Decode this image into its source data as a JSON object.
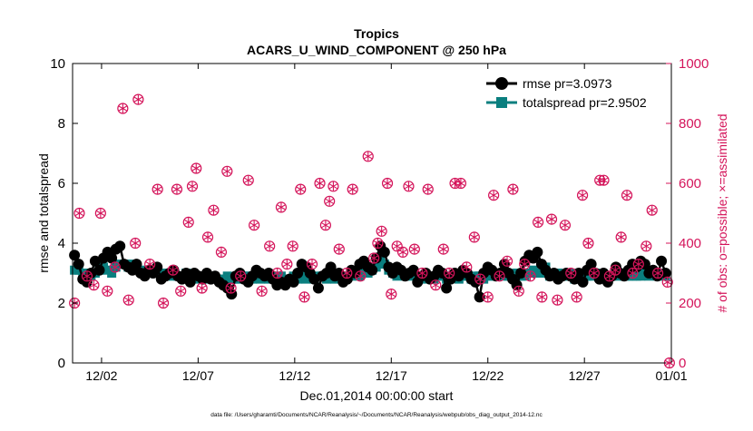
{
  "chart_data": {
    "type": "scatter",
    "title_line1": "Tropics",
    "title_line2": "ACARS_U_WIND_COMPONENT @ 250 hPa",
    "xlabel": "Dec.01,2014 00:00:00 start",
    "ylabel_left": "rmse and totalspread",
    "ylabel_right": "# of obs: o=possible; ×=assimilated",
    "footer": "data file: /Users/gharamti/Documents/NCAR/Reanalysis/~/Documents/NCAR/Reanalysis/webpub/obs_diag_output_2014-12.nc",
    "xlim": [
      0.5,
      31.5
    ],
    "ylim_left": [
      0,
      10
    ],
    "ylim_right": [
      0,
      1000
    ],
    "xticks": [
      {
        "value": 2,
        "label": "12/02"
      },
      {
        "value": 7,
        "label": "12/07"
      },
      {
        "value": 12,
        "label": "12/12"
      },
      {
        "value": 17,
        "label": "12/17"
      },
      {
        "value": 22,
        "label": "12/22"
      },
      {
        "value": 27,
        "label": "12/27"
      },
      {
        "value": 32,
        "label": "01/01"
      }
    ],
    "yticks_left": [
      "0",
      "2",
      "4",
      "6",
      "8",
      "10"
    ],
    "yticks_right": [
      "0",
      "200",
      "400",
      "600",
      "800",
      "1000"
    ],
    "legend": [
      {
        "name": "rmse pr=3.0973",
        "color": "#000000",
        "marker": "circle"
      },
      {
        "name": "totalspread pr=2.9502",
        "color": "#0a7f7f",
        "marker": "square"
      }
    ],
    "colors": {
      "rmse": "#000000",
      "spread": "#0a7f7f",
      "obs": "#d4145a",
      "axis_right": "#d4145a"
    },
    "series": [
      {
        "name": "rmse",
        "values": [
          3.6,
          3.3,
          2.8,
          2.7,
          3.0,
          3.4,
          3.1,
          3.5,
          3.7,
          3.5,
          3.8,
          3.9,
          3.3,
          3.2,
          3.1,
          3.3,
          3.0,
          2.9,
          3.1,
          3.0,
          3.2,
          2.8,
          2.9,
          3.0,
          3.1,
          2.9,
          2.8,
          3.0,
          2.7,
          3.0,
          2.9,
          2.8,
          3.0,
          2.8,
          2.9,
          2.7,
          2.6,
          2.5,
          2.3,
          2.9,
          3.0,
          2.8,
          2.7,
          2.9,
          3.1,
          3.0,
          2.9,
          3.0,
          2.8,
          2.6,
          2.7,
          2.6,
          2.8,
          2.7,
          3.0,
          3.3,
          3.2,
          3.0,
          2.8,
          2.5,
          2.9,
          3.0,
          3.2,
          2.9,
          3.0,
          2.7,
          2.8,
          3.1,
          3.0,
          3.3,
          3.4,
          3.2,
          3.1,
          3.5,
          3.9,
          3.7,
          3.2,
          3.0,
          3.2,
          3.1,
          2.9,
          3.0,
          3.1,
          2.7,
          2.9,
          3.0,
          2.8,
          2.9,
          3.1,
          3.0,
          2.5,
          2.8,
          3.0,
          2.9,
          3.1,
          3.0,
          2.8,
          2.7,
          2.2,
          3.0,
          3.2,
          3.1,
          2.9,
          3.0,
          3.3,
          3.0,
          2.8,
          2.6,
          3.0,
          3.4,
          3.6,
          3.5,
          3.7,
          3.3,
          3.1,
          2.9,
          3.0,
          2.8,
          2.9,
          3.0,
          2.9,
          2.8,
          3.0,
          2.7,
          3.1,
          3.3,
          3.0,
          2.8,
          3.0,
          2.7,
          2.9,
          3.2,
          3.0,
          2.9,
          3.1,
          3.3,
          3.2,
          3.4,
          3.3,
          3.0,
          3.1,
          2.9,
          3.4,
          3.0
        ]
      },
      {
        "name": "totalspread",
        "values": [
          3.1,
          3.1,
          3.0,
          3.0,
          2.9,
          3.0,
          3.1,
          3.2,
          3.1,
          3.0,
          3.2,
          3.3,
          3.3,
          3.2,
          3.3,
          3.2,
          3.1,
          3.0,
          3.1,
          3.0,
          3.1,
          3.0,
          2.9,
          3.0,
          2.9,
          2.9,
          2.9,
          3.0,
          2.9,
          2.9,
          2.8,
          2.9,
          2.8,
          2.9,
          2.8,
          2.8,
          2.8,
          2.9,
          2.8,
          2.8,
          2.8,
          2.9,
          2.9,
          2.8,
          2.9,
          2.8,
          2.9,
          2.8,
          2.9,
          2.8,
          2.9,
          2.8,
          2.8,
          2.9,
          2.8,
          2.9,
          2.8,
          2.9,
          2.8,
          2.9,
          2.9,
          2.8,
          2.9,
          2.8,
          2.9,
          2.8,
          2.9,
          2.9,
          3.0,
          2.9,
          3.0,
          3.0,
          3.1,
          3.2,
          3.4,
          3.3,
          3.1,
          3.0,
          2.9,
          3.0,
          2.9,
          2.9,
          3.0,
          2.9,
          2.9,
          2.8,
          2.9,
          2.8,
          2.9,
          2.9,
          2.8,
          2.9,
          2.9,
          2.8,
          2.9,
          2.9,
          2.8,
          2.9,
          2.9,
          2.8,
          2.9,
          2.9,
          2.9,
          3.0,
          2.9,
          2.9,
          2.9,
          3.0,
          2.9,
          2.9,
          3.0,
          3.1,
          3.0,
          3.0,
          3.2,
          2.9,
          3.0,
          3.0,
          2.9,
          2.9,
          3.0,
          2.8,
          2.9,
          2.9,
          2.9,
          2.9,
          3.0,
          2.9,
          2.9,
          2.9,
          2.9,
          3.0,
          2.9,
          2.9,
          2.9,
          2.9,
          2.9,
          2.9,
          3.0,
          2.9,
          3.0,
          2.9,
          3.0,
          2.9
        ]
      },
      {
        "name": "obs_count",
        "axis": "right",
        "points": [
          [
            0.6,
            200
          ],
          [
            0.85,
            500
          ],
          [
            1.25,
            290
          ],
          [
            1.6,
            260
          ],
          [
            1.95,
            500
          ],
          [
            2.3,
            240
          ],
          [
            2.7,
            320
          ],
          [
            3.1,
            850
          ],
          [
            3.4,
            210
          ],
          [
            3.75,
            400
          ],
          [
            3.9,
            880
          ],
          [
            4.5,
            330
          ],
          [
            4.9,
            580
          ],
          [
            5.2,
            200
          ],
          [
            5.7,
            310
          ],
          [
            5.9,
            580
          ],
          [
            6.1,
            240
          ],
          [
            6.5,
            470
          ],
          [
            6.7,
            590
          ],
          [
            6.9,
            650
          ],
          [
            7.2,
            250
          ],
          [
            7.5,
            420
          ],
          [
            7.8,
            510
          ],
          [
            8.2,
            370
          ],
          [
            8.5,
            640
          ],
          [
            8.7,
            250
          ],
          [
            9.2,
            290
          ],
          [
            9.6,
            610
          ],
          [
            9.9,
            460
          ],
          [
            10.3,
            240
          ],
          [
            10.7,
            390
          ],
          [
            11.1,
            300
          ],
          [
            11.3,
            520
          ],
          [
            11.6,
            330
          ],
          [
            11.9,
            390
          ],
          [
            12.3,
            580
          ],
          [
            12.5,
            220
          ],
          [
            12.9,
            330
          ],
          [
            13.3,
            600
          ],
          [
            13.6,
            460
          ],
          [
            13.8,
            540
          ],
          [
            14.0,
            590
          ],
          [
            14.3,
            380
          ],
          [
            14.7,
            300
          ],
          [
            15.0,
            580
          ],
          [
            15.4,
            290
          ],
          [
            15.8,
            690
          ],
          [
            16.1,
            350
          ],
          [
            16.3,
            400
          ],
          [
            16.5,
            440
          ],
          [
            16.8,
            600
          ],
          [
            17.0,
            230
          ],
          [
            17.3,
            390
          ],
          [
            17.6,
            370
          ],
          [
            17.9,
            590
          ],
          [
            18.2,
            380
          ],
          [
            18.6,
            300
          ],
          [
            18.9,
            580
          ],
          [
            19.3,
            260
          ],
          [
            19.7,
            380
          ],
          [
            20.0,
            300
          ],
          [
            20.3,
            600
          ],
          [
            20.6,
            600
          ],
          [
            20.9,
            320
          ],
          [
            21.3,
            420
          ],
          [
            21.6,
            280
          ],
          [
            22.0,
            220
          ],
          [
            22.3,
            560
          ],
          [
            22.6,
            290
          ],
          [
            23.0,
            340
          ],
          [
            23.3,
            580
          ],
          [
            23.6,
            240
          ],
          [
            23.9,
            330
          ],
          [
            24.2,
            290
          ],
          [
            24.6,
            470
          ],
          [
            24.8,
            220
          ],
          [
            25.3,
            480
          ],
          [
            25.6,
            210
          ],
          [
            26.0,
            460
          ],
          [
            26.3,
            300
          ],
          [
            26.6,
            220
          ],
          [
            26.9,
            560
          ],
          [
            27.2,
            400
          ],
          [
            27.5,
            300
          ],
          [
            27.8,
            610
          ],
          [
            28.0,
            610
          ],
          [
            28.3,
            290
          ],
          [
            28.6,
            310
          ],
          [
            28.9,
            420
          ],
          [
            29.2,
            560
          ],
          [
            29.5,
            300
          ],
          [
            29.8,
            330
          ],
          [
            30.2,
            390
          ],
          [
            30.5,
            510
          ],
          [
            30.8,
            300
          ],
          [
            31.3,
            270
          ],
          [
            31.4,
            0
          ]
        ]
      }
    ]
  }
}
